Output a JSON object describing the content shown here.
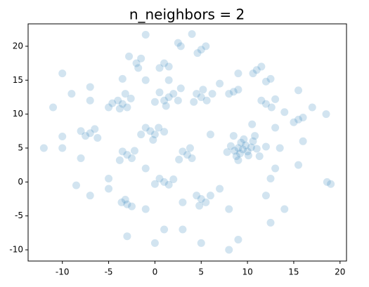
{
  "chart_data": {
    "type": "scatter",
    "title": "n_neighbors = 2",
    "color": "#1f77b4",
    "alpha": 0.2,
    "xlim": [
      -13.7,
      20.7
    ],
    "ylim": [
      -11.65,
      23.3
    ],
    "xticks": [
      -10,
      -5,
      0,
      5,
      10,
      15,
      20
    ],
    "yticks": [
      -10,
      -5,
      0,
      5,
      10,
      15,
      20
    ],
    "x": [
      9.5,
      9,
      10,
      9.2,
      9.8,
      8.6,
      10.4,
      9.3,
      10.1,
      8.8,
      11,
      8.2,
      9.6,
      10.6,
      7.8,
      11.3,
      9,
      10.8,
      8.5,
      12,
      -3.5,
      -4,
      -3,
      -3.8,
      -2.6,
      -4.6,
      -3.2,
      1.5,
      1,
      2,
      0.5,
      2.5,
      1.2,
      0,
      2.8,
      5,
      4.5,
      5.6,
      5.2,
      4.2,
      6.2,
      -0.5,
      0,
      -1,
      0.4,
      -1.5,
      -0.2,
      1,
      -7,
      -6.5,
      -7.5,
      -6.2,
      -8,
      -3,
      -3.5,
      -2.5,
      -3.8,
      -2.2,
      3.5,
      3,
      4,
      3.8,
      2.6,
      1,
      0.5,
      1.5,
      0,
      2,
      5,
      4.5,
      5.5,
      4.8,
      6,
      -3,
      -3.6,
      -2.5,
      -3.2,
      8.5,
      8,
      9,
      11,
      11.5,
      10.6,
      12,
      11.5,
      12.6,
      13,
      15.5,
      16,
      15,
      12,
      12.5,
      -2,
      -1.5,
      -2.8,
      -1.8,
      1,
      1.5,
      0.5,
      5,
      5.5,
      4.6,
      2.5,
      2.8,
      9,
      7,
      -10,
      -10,
      -9,
      -7,
      -5,
      -12,
      19,
      18.6,
      15.5,
      15.5,
      12.5,
      8,
      8,
      9,
      5,
      -1,
      -7,
      -5,
      -3,
      0,
      1,
      3,
      3,
      12,
      14,
      13.5,
      13,
      17,
      16,
      18.5,
      -11,
      -8,
      -8.5,
      -5,
      -1,
      7,
      13,
      10.5,
      6,
      -1,
      1.5,
      -1,
      4,
      -10,
      -7,
      -3.5,
      14,
      12.5
    ],
    "y": [
      4.8,
      5,
      4.5,
      4.2,
      5.4,
      4.6,
      5.1,
      5.8,
      3.9,
      3.8,
      4.9,
      5.3,
      6.3,
      6,
      4.4,
      3.8,
      3.2,
      6.8,
      6.8,
      5.2,
      11.5,
      12,
      11,
      10.8,
      12.3,
      11.6,
      13,
      12.5,
      12,
      13,
      13.2,
      12,
      11.2,
      11.8,
      13.8,
      12.5,
      13,
      12,
      13.6,
      11.8,
      13,
      7.5,
      7,
      8,
      8,
      7,
      6.2,
      7.4,
      7.2,
      7.8,
      6.8,
      6.5,
      7.5,
      4,
      4.5,
      3.5,
      3.2,
      4.6,
      4,
      4.5,
      3.5,
      5,
      3.3,
      0,
      0.5,
      -0.4,
      -0.3,
      0.4,
      -2.5,
      -2,
      -3,
      -3.5,
      -2,
      -3.3,
      -3,
      -3.6,
      -2.6,
      13.3,
      13,
      13.6,
      16.5,
      17,
      16,
      11.5,
      12,
      11,
      12.2,
      9.2,
      9.5,
      8.8,
      14.8,
      15.2,
      17.5,
      18.2,
      18.5,
      16.8,
      17.5,
      17,
      16.8,
      19.5,
      20,
      19,
      20.5,
      20,
      16,
      14.5,
      5,
      16,
      13,
      12,
      11,
      5,
      -0.3,
      0,
      2.5,
      13.5,
      -6,
      -4,
      -10,
      -8.5,
      -9,
      -4,
      -2,
      0.5,
      -8,
      -9,
      -7,
      -7,
      -3,
      -2,
      -4,
      5,
      8,
      11,
      6,
      10,
      11,
      3.5,
      -0.5,
      -1,
      2,
      -1,
      2,
      8.5,
      7,
      15,
      15,
      21.7,
      21.8,
      6.7,
      14,
      15.2,
      10.3,
      0.5
    ]
  }
}
